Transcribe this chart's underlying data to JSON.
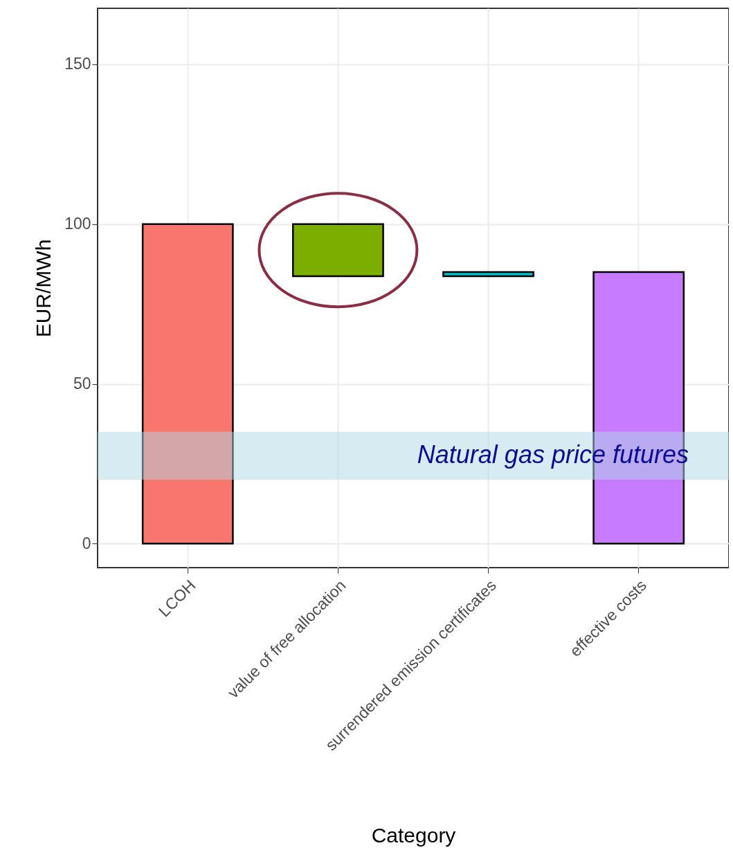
{
  "chart_data": {
    "type": "bar",
    "xlabel": "Category",
    "ylabel": "EUR/MWh",
    "categories": [
      "LCOH",
      "value of free allocation",
      "surrendered emission certificates",
      "effective costs"
    ],
    "values": [
      100,
      -16.3,
      1.3,
      85
    ],
    "base": [
      0,
      100,
      83.7,
      0
    ],
    "colors": [
      "#f8766d",
      "#7cae00",
      "#00bfc4",
      "#c77cff"
    ],
    "ylim": [
      -7.5,
      167.5
    ],
    "yticks": [
      0,
      50,
      100,
      150
    ],
    "grid": true,
    "bands": [
      {
        "axis": "y",
        "from": 20,
        "to": 35,
        "label": "Natural gas price futures",
        "color": "#add8e6"
      }
    ]
  }
}
